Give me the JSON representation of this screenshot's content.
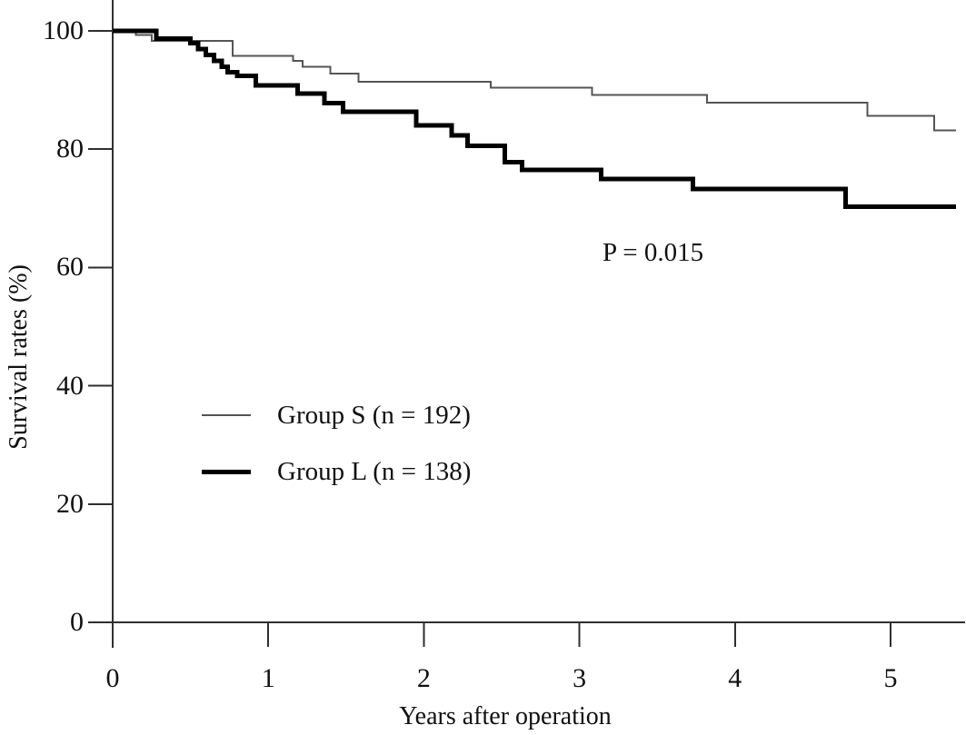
{
  "chart_data": {
    "type": "line",
    "subtype": "kaplan-meier-step",
    "title": "",
    "xlabel": "Years after operation",
    "ylabel": "Survival rates (%)",
    "xlim": [
      0,
      5.48
    ],
    "ylim": [
      0,
      100
    ],
    "xticks": [
      0,
      1,
      2,
      3,
      4,
      5
    ],
    "yticks": [
      0,
      20,
      40,
      60,
      80,
      100
    ],
    "grid": false,
    "legend_position": "inside-center-left",
    "annotation": "P = 0.015",
    "axis_color": "#2f2f2f",
    "series": [
      {
        "name": "Group S (n = 192)",
        "color": "#555555",
        "stroke_width": 2,
        "end_x": 5.42,
        "points": [
          [
            0,
            100
          ],
          [
            0.15,
            99.3
          ],
          [
            0.25,
            98.3
          ],
          [
            0.77,
            95.8
          ],
          [
            1.16,
            94.9
          ],
          [
            1.22,
            93.9
          ],
          [
            1.4,
            92.8
          ],
          [
            1.58,
            91.4
          ],
          [
            2.43,
            90.4
          ],
          [
            3.08,
            89.2
          ],
          [
            3.82,
            87.9
          ],
          [
            4.85,
            85.6
          ],
          [
            5.28,
            83.2
          ]
        ]
      },
      {
        "name": "Group L (n = 138)",
        "color": "#000000",
        "stroke_width": 5,
        "end_x": 5.42,
        "points": [
          [
            0,
            100
          ],
          [
            0.28,
            98.7
          ],
          [
            0.5,
            97.9
          ],
          [
            0.55,
            96.9
          ],
          [
            0.6,
            95.9
          ],
          [
            0.65,
            94.9
          ],
          [
            0.7,
            93.9
          ],
          [
            0.74,
            93.0
          ],
          [
            0.8,
            92.4
          ],
          [
            0.92,
            90.8
          ],
          [
            1.19,
            89.4
          ],
          [
            1.36,
            87.8
          ],
          [
            1.48,
            86.3
          ],
          [
            1.95,
            84.0
          ],
          [
            2.18,
            82.3
          ],
          [
            2.28,
            80.6
          ],
          [
            2.52,
            77.8
          ],
          [
            2.63,
            76.5
          ],
          [
            3.14,
            75.0
          ],
          [
            3.73,
            73.3
          ],
          [
            4.71,
            70.3
          ]
        ]
      }
    ]
  }
}
